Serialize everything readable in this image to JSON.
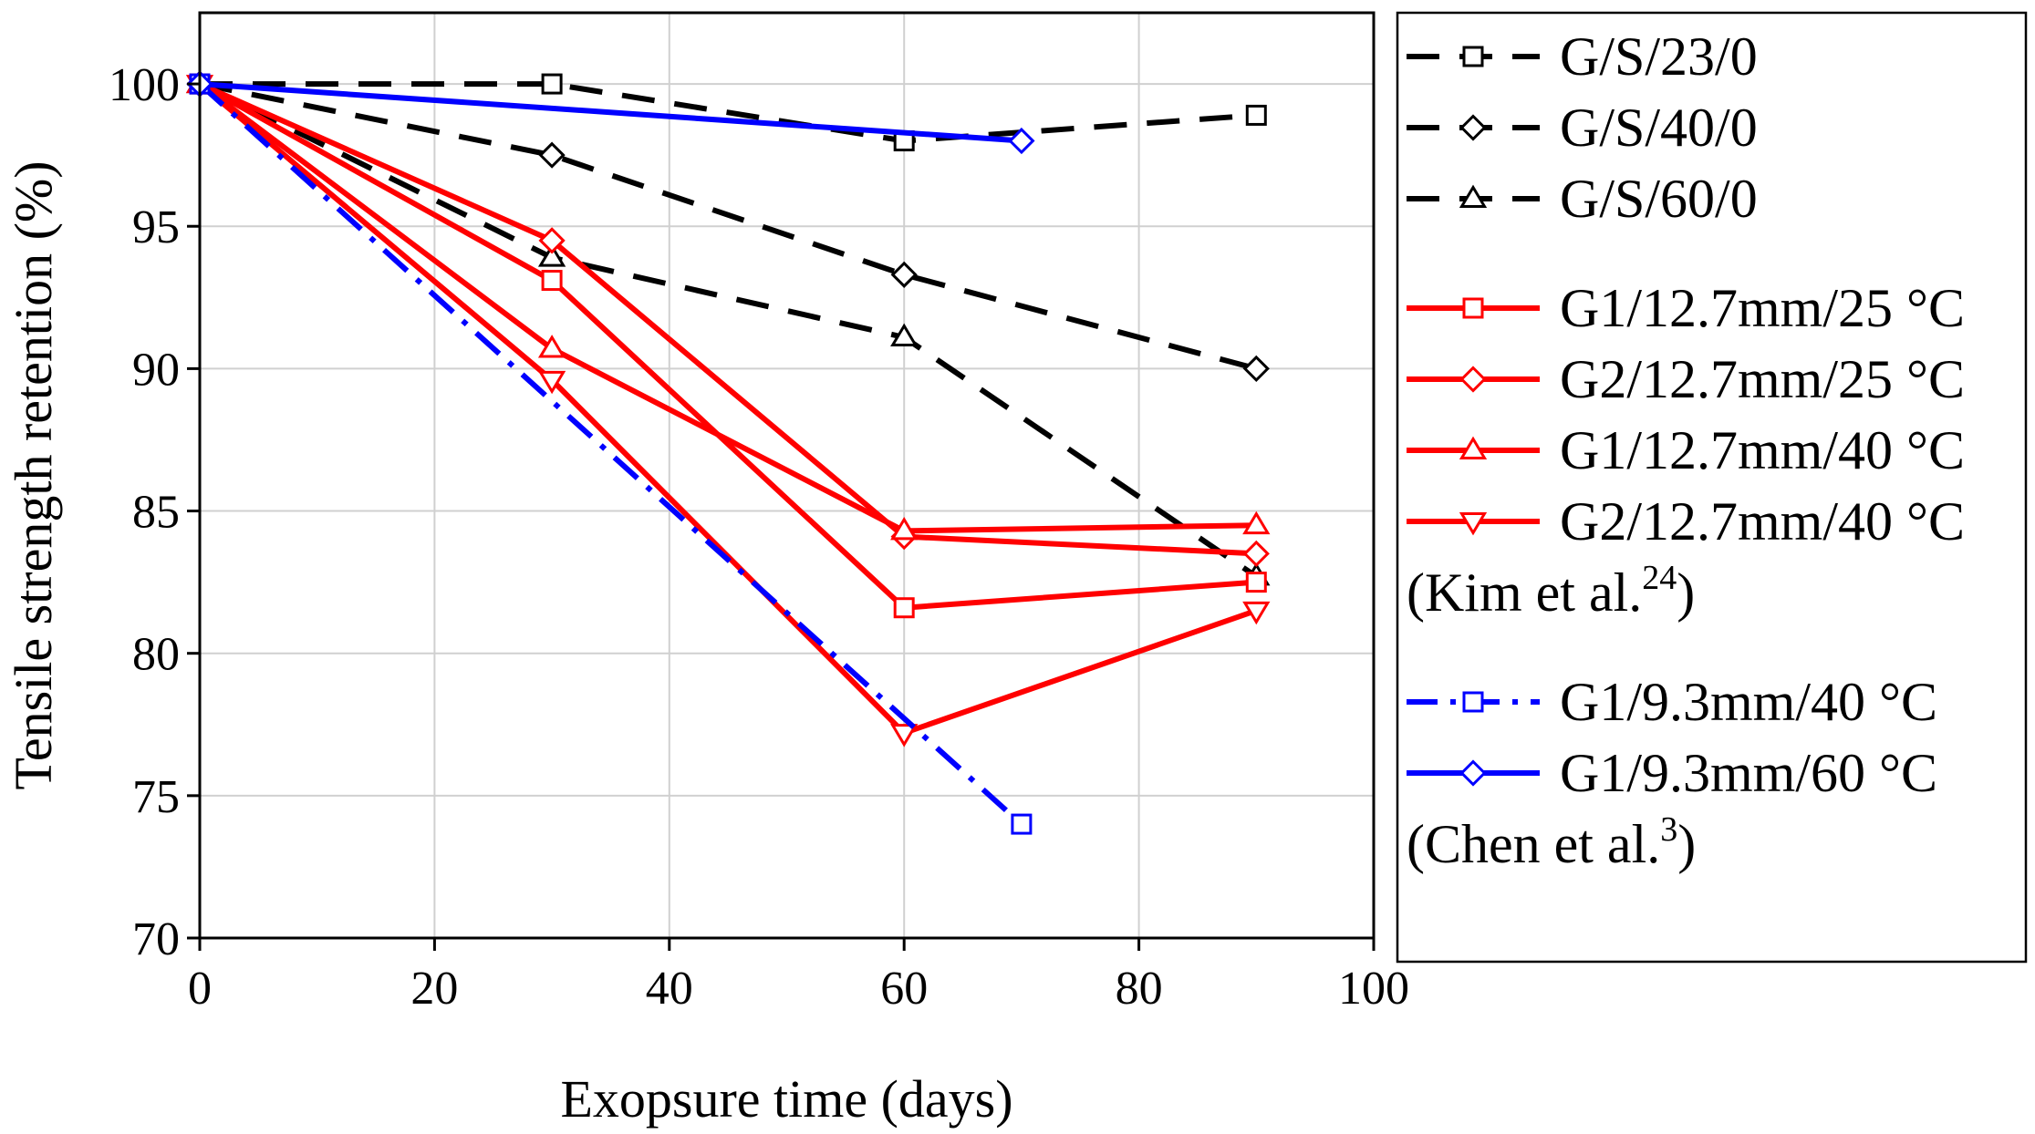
{
  "chart_data": {
    "type": "line",
    "title": "",
    "xlabel": "Exopsure time (days)",
    "ylabel": "Tensile strength retention (%)",
    "xlim": [
      0,
      100
    ],
    "ylim": [
      70,
      102.5
    ],
    "xticks": [
      0,
      20,
      40,
      60,
      80,
      100
    ],
    "yticks": [
      70,
      75,
      80,
      85,
      90,
      95,
      100
    ],
    "grid": true,
    "legend_position": "right",
    "series": [
      {
        "name": "G/S/23/0",
        "color": "#000000",
        "dash": "dashed",
        "marker": "square",
        "x": [
          0,
          30,
          60,
          90
        ],
        "y": [
          100,
          100,
          98,
          98.9
        ]
      },
      {
        "name": "G/S/40/0",
        "color": "#000000",
        "dash": "dashed",
        "marker": "diamond",
        "x": [
          0,
          30,
          60,
          90
        ],
        "y": [
          100,
          97.5,
          93.3,
          90
        ]
      },
      {
        "name": "G/S/60/0",
        "color": "#000000",
        "dash": "dashed",
        "marker": "triangle-up",
        "x": [
          0,
          30,
          60,
          90
        ],
        "y": [
          100,
          93.9,
          91.1,
          82.7
        ]
      },
      {
        "name": "G1/12.7mm/25 °C",
        "color": "#ff0000",
        "dash": "solid",
        "marker": "square",
        "x": [
          0,
          30,
          60,
          90
        ],
        "y": [
          100,
          93.1,
          81.6,
          82.5
        ]
      },
      {
        "name": "G2/12.7mm/25 °C",
        "color": "#ff0000",
        "dash": "solid",
        "marker": "diamond",
        "x": [
          0,
          30,
          60,
          90
        ],
        "y": [
          100,
          94.5,
          84.1,
          83.5
        ]
      },
      {
        "name": "G1/12.7mm/40 °C",
        "color": "#ff0000",
        "dash": "solid",
        "marker": "triangle-up",
        "x": [
          0,
          30,
          60,
          90
        ],
        "y": [
          100,
          90.7,
          84.3,
          84.5
        ]
      },
      {
        "name": "G2/12.7mm/40 °C",
        "color": "#ff0000",
        "dash": "solid",
        "marker": "triangle-down",
        "x": [
          0,
          30,
          60,
          90
        ],
        "y": [
          100,
          89.6,
          77.2,
          81.5
        ]
      },
      {
        "name": "G1/9.3mm/40 °C",
        "color": "#0000ff",
        "dash": "dashdot",
        "marker": "square",
        "x": [
          0,
          70
        ],
        "y": [
          100,
          74
        ]
      },
      {
        "name": "G1/9.3mm/60 °C",
        "color": "#0000ff",
        "dash": "solid",
        "marker": "diamond",
        "x": [
          0,
          70
        ],
        "y": [
          100,
          98
        ]
      }
    ],
    "legend_groups": [
      {
        "series": [
          "G/S/23/0",
          "G/S/40/0",
          "G/S/60/0"
        ],
        "caption": null
      },
      {
        "series": [
          "G1/12.7mm/25 °C",
          "G2/12.7mm/25 °C",
          "G1/12.7mm/40 °C",
          "G2/12.7mm/40 °C"
        ],
        "caption": {
          "text": "(Kim et al.",
          "sup": "24",
          "close": ")"
        }
      },
      {
        "series": [
          "G1/9.3mm/40 °C",
          "G1/9.3mm/60 °C"
        ],
        "caption": {
          "text": "(Chen et al.",
          "sup": "3",
          "close": ")"
        }
      }
    ]
  }
}
